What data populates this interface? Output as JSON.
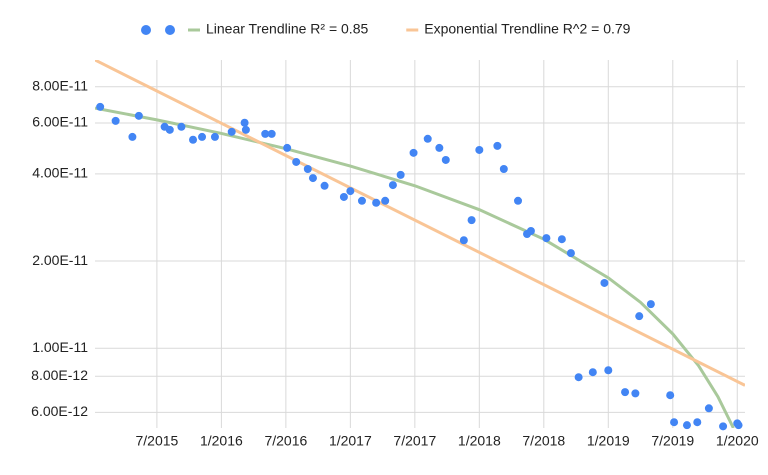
{
  "chart_data": {
    "type": "scatter",
    "yscale": "log",
    "grid": true,
    "legend": "top",
    "xlim": [
      2015.02,
      2020.06
    ],
    "xticks": [
      {
        "value": 2015.5,
        "label": "7/2015"
      },
      {
        "value": 2016.0,
        "label": "1/2016"
      },
      {
        "value": 2016.5,
        "label": "7/2016"
      },
      {
        "value": 2017.0,
        "label": "1/2017"
      },
      {
        "value": 2017.5,
        "label": "7/2017"
      },
      {
        "value": 2018.0,
        "label": "1/2018"
      },
      {
        "value": 2018.5,
        "label": "7/2018"
      },
      {
        "value": 2019.0,
        "label": "1/2019"
      },
      {
        "value": 2019.5,
        "label": "7/2019"
      },
      {
        "value": 2020.0,
        "label": "1/2020"
      }
    ],
    "ylim": [
      5.3e-12,
      9.9e-11
    ],
    "yticks": [
      {
        "value": 6e-12,
        "label": "6.00E-12"
      },
      {
        "value": 8e-12,
        "label": "8.00E-12"
      },
      {
        "value": 1e-11,
        "label": "1.00E-11"
      },
      {
        "value": 2e-11,
        "label": "2.00E-11"
      },
      {
        "value": 4e-11,
        "label": "4.00E-11"
      },
      {
        "value": 6e-11,
        "label": "6.00E-11"
      },
      {
        "value": 8e-11,
        "label": "8.00E-11"
      }
    ],
    "series": [
      {
        "color": "#4285f4",
        "mode": "markers",
        "x": [
          2015.06,
          2015.18,
          2015.31,
          2015.36,
          2015.56,
          2015.6,
          2015.69,
          2015.78,
          2015.85,
          2015.95,
          2016.08,
          2016.18,
          2016.19,
          2016.34,
          2016.39,
          2016.51,
          2016.58,
          2016.67,
          2016.71,
          2016.8,
          2016.95,
          2017.0,
          2017.09,
          2017.2,
          2017.27,
          2017.33,
          2017.39,
          2017.49,
          2017.6,
          2017.69,
          2017.74,
          2017.88,
          2017.94,
          2018.0,
          2018.14,
          2018.19,
          2018.3,
          2018.37,
          2018.4,
          2018.52,
          2018.64,
          2018.71,
          2018.77,
          2018.88,
          2018.97,
          2019.0,
          2019.13,
          2019.21,
          2019.24,
          2019.33,
          2019.48,
          2019.51,
          2019.61,
          2019.69,
          2019.78,
          2019.89,
          2020.0,
          2020.01
        ],
        "values": [
          6.82e-11,
          6.1e-11,
          5.37e-11,
          6.35e-11,
          5.82e-11,
          5.68e-11,
          5.82e-11,
          5.25e-11,
          5.37e-11,
          5.37e-11,
          5.59e-11,
          6.01e-11,
          5.68e-11,
          5.5e-11,
          5.5e-11,
          4.92e-11,
          4.4e-11,
          4.16e-11,
          3.87e-11,
          3.64e-11,
          3.33e-11,
          3.49e-11,
          3.23e-11,
          3.18e-11,
          3.23e-11,
          3.66e-11,
          3.97e-11,
          4.73e-11,
          5.29e-11,
          4.92e-11,
          4.47e-11,
          2.36e-11,
          2.77e-11,
          4.84e-11,
          5e-11,
          4.16e-11,
          3.23e-11,
          2.48e-11,
          2.54e-11,
          2.4e-11,
          2.38e-11,
          2.13e-11,
          7.94e-12,
          8.26e-12,
          1.68e-11,
          8.39e-12,
          7.05e-12,
          6.98e-12,
          1.29e-11,
          1.42e-11,
          6.88e-12,
          5.55e-12,
          5.42e-12,
          5.55e-12,
          6.2e-12,
          5.37e-12,
          5.5e-12,
          5.42e-12
        ]
      },
      {
        "name": "Linear Trendline R² = 0.85",
        "color": "#a9c99b",
        "mode": "line",
        "x": [
          2015.02,
          2015.5,
          2016.0,
          2016.5,
          2017.0,
          2017.5,
          2018.0,
          2018.5,
          2019.0,
          2019.25,
          2019.5,
          2019.7,
          2019.85,
          2019.97
        ],
        "values": [
          6.75e-11,
          6.15e-11,
          5.52e-11,
          4.89e-11,
          4.26e-11,
          3.64e-11,
          3.01e-11,
          2.38e-11,
          1.75e-11,
          1.44e-11,
          1.12e-11,
          8.7e-12,
          6.8e-12,
          5.3e-12
        ]
      },
      {
        "name": "Exponential Trendline R^2 = 0.79",
        "color": "#f9c596",
        "mode": "line",
        "x": [
          2015.02,
          2020.06
        ],
        "values": [
          9.9e-11,
          7.44e-12
        ]
      }
    ]
  }
}
